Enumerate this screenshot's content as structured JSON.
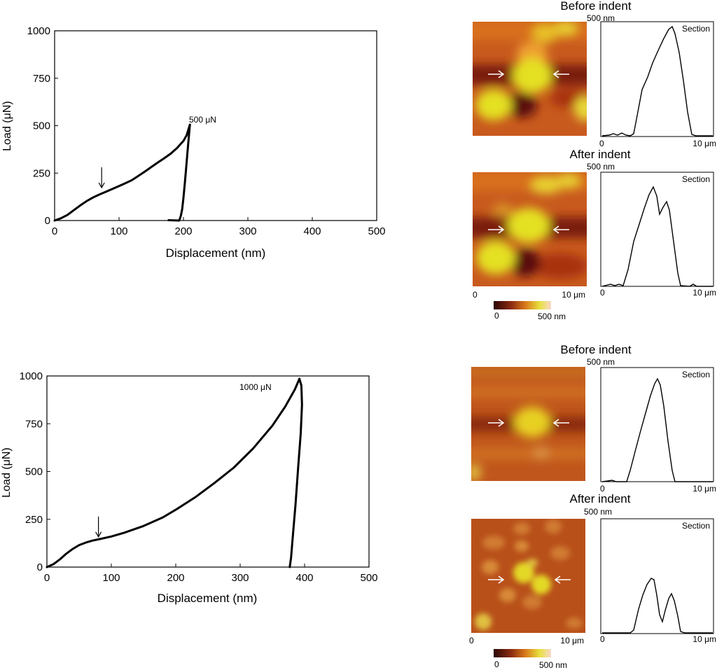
{
  "chart_data": [
    {
      "type": "line",
      "id": "top",
      "xlabel": "Displacement (nm)",
      "ylabel": "Load (μN)",
      "xlim": [
        0,
        500
      ],
      "ylim": [
        0,
        1000
      ],
      "xticks": [
        0,
        100,
        200,
        300,
        400,
        500
      ],
      "yticks": [
        0,
        250,
        500,
        750,
        1000
      ],
      "xtick_labels": [
        "0",
        "100",
        "200",
        "300",
        "400",
        "500"
      ],
      "ytick_labels": [
        "0",
        "250",
        "500",
        "750",
        "1000"
      ],
      "peak_label": "500 μN",
      "grid": false,
      "arrow_at": {
        "x": 73,
        "y": 155
      },
      "series": [
        {
          "segment": "loading",
          "x": [
            0,
            10,
            20,
            30,
            40,
            50,
            60,
            70,
            80,
            90,
            100,
            110,
            120,
            130,
            140,
            150,
            160,
            170,
            180,
            190,
            200,
            205,
            210
          ],
          "y": [
            0,
            12,
            30,
            55,
            80,
            103,
            122,
            138,
            152,
            167,
            182,
            197,
            213,
            235,
            258,
            282,
            305,
            328,
            352,
            382,
            420,
            450,
            505
          ]
        },
        {
          "segment": "unloading",
          "x": [
            210,
            208,
            206,
            204,
            202,
            200,
            198,
            196,
            194,
            193
          ],
          "y": [
            505,
            430,
            350,
            270,
            190,
            120,
            60,
            25,
            5,
            0
          ]
        },
        {
          "segment": "tail",
          "x": [
            177,
            185,
            193
          ],
          "y": [
            2,
            1,
            0
          ]
        }
      ]
    },
    {
      "type": "line",
      "id": "bottom",
      "xlabel": "Displacement (nm)",
      "ylabel": "Load (μN)",
      "xlim": [
        0,
        500
      ],
      "ylim": [
        0,
        1000
      ],
      "xticks": [
        0,
        100,
        200,
        300,
        400,
        500
      ],
      "yticks": [
        0,
        250,
        500,
        750,
        1000
      ],
      "xtick_labels": [
        "0",
        "100",
        "200",
        "300",
        "400",
        "500"
      ],
      "ytick_labels": [
        "0",
        "250",
        "500",
        "750",
        "1000"
      ],
      "peak_label": "1000 μN",
      "grid": false,
      "arrow_at": {
        "x": 80,
        "y": 140
      },
      "series": [
        {
          "segment": "loading",
          "x": [
            0,
            10,
            20,
            30,
            40,
            50,
            60,
            70,
            80,
            100,
            120,
            150,
            180,
            200,
            230,
            260,
            290,
            320,
            350,
            370,
            385,
            392
          ],
          "y": [
            0,
            15,
            40,
            70,
            95,
            115,
            128,
            138,
            145,
            160,
            180,
            215,
            260,
            300,
            365,
            440,
            520,
            620,
            740,
            840,
            930,
            985
          ]
        },
        {
          "segment": "unloading",
          "x": [
            392,
            395,
            396,
            394,
            390,
            386,
            382,
            379,
            377
          ],
          "y": [
            985,
            950,
            850,
            700,
            520,
            330,
            170,
            50,
            0
          ]
        }
      ]
    }
  ],
  "afm_panels": [
    {
      "id": "before-indent-1",
      "title": "Before indent",
      "scale_label": "500 nm",
      "section_label": "Section",
      "axis_start": "0",
      "axis_end": "10 μm",
      "image_axis_start": "",
      "image_axis_end": ""
    },
    {
      "id": "after-indent-1",
      "title": "After indent",
      "scale_label": "500 nm",
      "section_label": "Section",
      "axis_start": "0",
      "axis_end": "10 μm",
      "image_axis_start": "0",
      "image_axis_end": "10 μm"
    },
    {
      "id": "before-indent-2",
      "title": "Before indent",
      "scale_label": "500 nm",
      "section_label": "Section",
      "axis_start": "0",
      "axis_end": "10 μm",
      "image_axis_start": "",
      "image_axis_end": ""
    },
    {
      "id": "after-indent-2",
      "title": "After indent",
      "scale_label": "500 nm",
      "section_label": "Section",
      "axis_start": "0",
      "axis_end": "10 μm",
      "image_axis_start": "0",
      "image_axis_end": "10 μm"
    }
  ],
  "colorbars": [
    {
      "min_label": "0",
      "max_label": "500 nm"
    },
    {
      "min_label": "0",
      "max_label": "500 nm"
    }
  ],
  "colors": {
    "curve": "#000000",
    "afm_dark": "#5a0f08",
    "afm_mid": "#c8501a",
    "afm_bright": "#e8e020",
    "afm_peak": "#f4c89a"
  }
}
